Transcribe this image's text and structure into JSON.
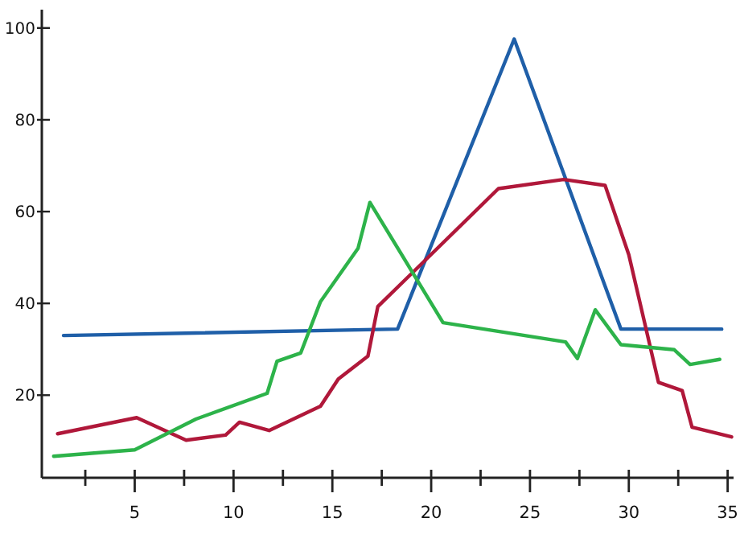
{
  "chart_data": {
    "type": "line",
    "xlim": [
      0.3,
      35.3
    ],
    "xticks": [
      {
        "value": 2.5,
        "label": null
      },
      5,
      {
        "value": 7.5,
        "label": null
      },
      10,
      {
        "value": 12.5,
        "label": null
      },
      15,
      {
        "value": 17.5,
        "label": null
      },
      20,
      {
        "value": 22.5,
        "label": null
      },
      25,
      {
        "value": 27.5,
        "label": null
      },
      30,
      {
        "value": 32.5,
        "label": null
      },
      35
    ],
    "ylim": [
      2,
      104
    ],
    "yticks": [
      20,
      40,
      60,
      80,
      100
    ],
    "grid": false,
    "marker": "none",
    "line_style": "solid",
    "series": [
      {
        "color": "#1f5fa8",
        "x": [
          1.4,
          18.3,
          24.2,
          29.6,
          34.7
        ],
        "values": [
          33,
          34.4,
          97.6,
          34.4,
          34.4
        ]
      },
      {
        "color": "#b0183a",
        "x": [
          1.1,
          5.1,
          7.6,
          9.6,
          10.3,
          11.8,
          14.4,
          15.3,
          16.8,
          17.3,
          23.4,
          26.7,
          28.8,
          30,
          31.5,
          32.7,
          33.2,
          35.2
        ],
        "values": [
          11.6,
          15.1,
          10.2,
          11.3,
          14.1,
          12.3,
          17.6,
          23.5,
          28.5,
          39.3,
          65,
          67,
          65.7,
          50.6,
          22.8,
          21,
          13,
          10.9
        ]
      },
      {
        "color": "#2db34a",
        "x": [
          0.9,
          5,
          8.1,
          11.7,
          12.2,
          13.4,
          14.4,
          16.3,
          16.9,
          20.6,
          26.8,
          27.4,
          28.3,
          29.6,
          32.3,
          33.1,
          34.6
        ],
        "values": [
          6.7,
          8.1,
          14.8,
          20.4,
          27.4,
          29.2,
          40.4,
          52,
          62,
          35.8,
          31.6,
          28,
          38.6,
          31,
          29.9,
          26.7,
          27.8
        ]
      }
    ]
  }
}
